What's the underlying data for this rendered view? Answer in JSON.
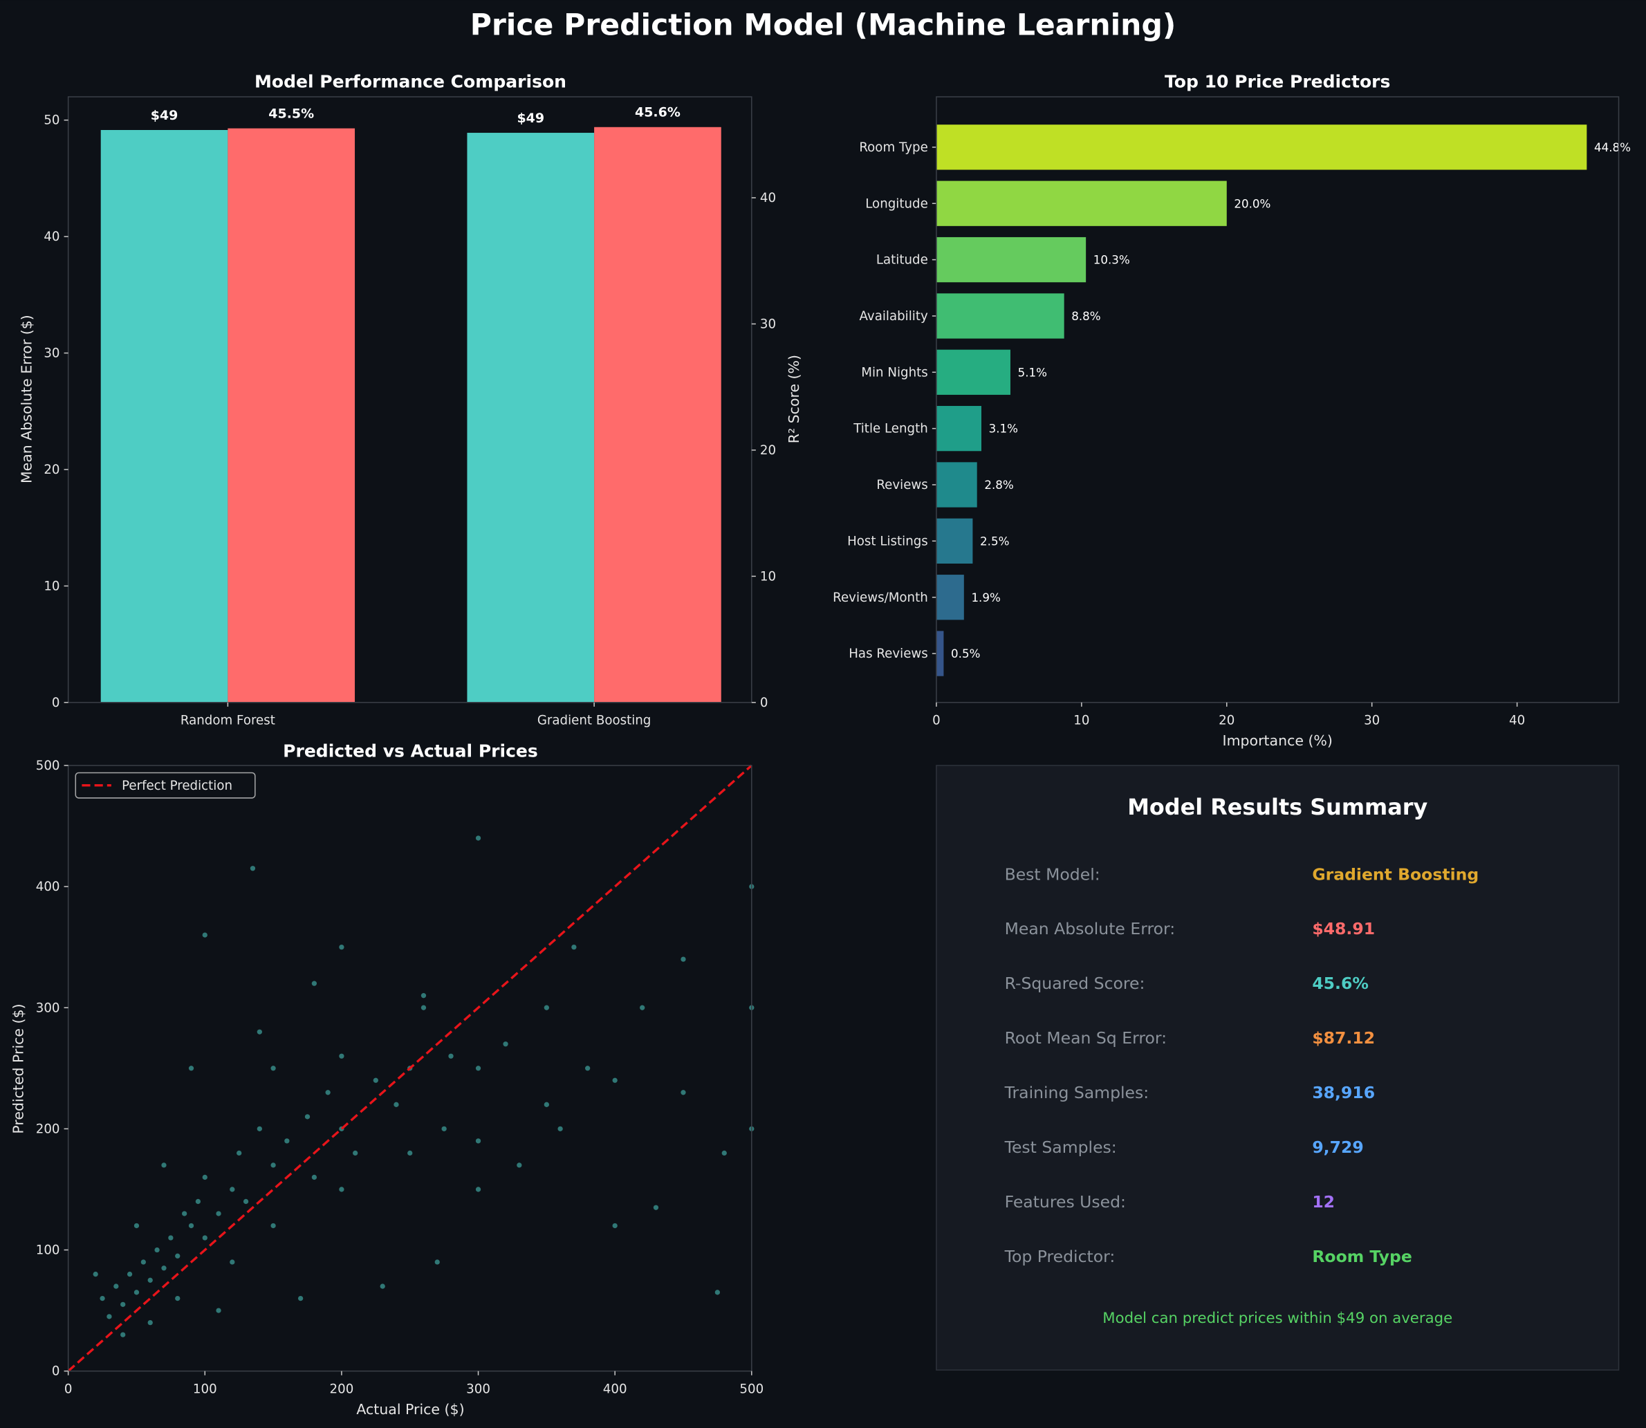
{
  "title": "Price Prediction Model (Machine Learning)",
  "chart_data": [
    {
      "type": "bar",
      "title": "Model Performance Comparison",
      "categories": [
        "Random Forest",
        "Gradient Boosting"
      ],
      "ylabel": "Mean Absolute Error ($)",
      "y2label": "R² Score (%)",
      "ylim": [
        0,
        52
      ],
      "y2lim": [
        0,
        48
      ],
      "yticks": [
        0,
        10,
        20,
        30,
        40,
        50
      ],
      "y2ticks": [
        0,
        10,
        20,
        30,
        40
      ],
      "series": [
        {
          "axis": "left",
          "values": [
            49.15,
            48.91
          ],
          "labels": [
            "$49",
            "$49"
          ],
          "color": "#4ecdc4"
        },
        {
          "axis": "right",
          "values": [
            45.5,
            45.6
          ],
          "labels": [
            "45.5%",
            "45.6%"
          ],
          "color": "#ff6b6b"
        }
      ]
    },
    {
      "type": "bar",
      "orientation": "horizontal",
      "title": "Top 10 Price Predictors",
      "xlabel": "Importance (%)",
      "xlim": [
        0,
        47
      ],
      "xticks": [
        0,
        10,
        20,
        30,
        40
      ],
      "categories": [
        "Room Type",
        "Longitude",
        "Latitude",
        "Availability",
        "Min Nights",
        "Title Length",
        "Reviews",
        "Host Listings",
        "Reviews/Month",
        "Has Reviews"
      ],
      "values": [
        44.8,
        20.0,
        10.3,
        8.8,
        5.1,
        3.1,
        2.8,
        2.5,
        1.9,
        0.5
      ],
      "labels": [
        "44.8%",
        "20.0%",
        "10.3%",
        "8.8%",
        "5.1%",
        "3.1%",
        "2.8%",
        "2.5%",
        "1.9%",
        "0.5%"
      ],
      "colors": [
        "#bfe025",
        "#90d743",
        "#65cb5e",
        "#40bd72",
        "#26ad81",
        "#1f9e89",
        "#1f8a8c",
        "#26788e",
        "#2d6b8e",
        "#35558a"
      ]
    },
    {
      "type": "scatter",
      "title": "Predicted vs Actual Prices",
      "xlabel": "Actual Price ($)",
      "ylabel": "Predicted Price ($)",
      "xlim": [
        0,
        500
      ],
      "ylim": [
        0,
        500
      ],
      "xticks": [
        0,
        100,
        200,
        300,
        400,
        500
      ],
      "yticks": [
        0,
        100,
        200,
        300,
        400,
        500
      ],
      "legend": "top-left",
      "reference_line": {
        "name": "Perfect Prediction",
        "from": [
          0,
          0
        ],
        "to": [
          500,
          500
        ],
        "color": "#e8141a"
      },
      "point_color": "#4ecdc4",
      "points": [
        [
          25,
          60
        ],
        [
          30,
          45
        ],
        [
          35,
          70
        ],
        [
          40,
          55
        ],
        [
          45,
          80
        ],
        [
          50,
          65
        ],
        [
          55,
          90
        ],
        [
          60,
          75
        ],
        [
          65,
          100
        ],
        [
          70,
          85
        ],
        [
          75,
          110
        ],
        [
          80,
          95
        ],
        [
          85,
          130
        ],
        [
          90,
          120
        ],
        [
          95,
          140
        ],
        [
          100,
          110
        ],
        [
          100,
          160
        ],
        [
          110,
          130
        ],
        [
          120,
          150
        ],
        [
          125,
          180
        ],
        [
          130,
          140
        ],
        [
          140,
          200
        ],
        [
          150,
          170
        ],
        [
          150,
          120
        ],
        [
          150,
          250
        ],
        [
          160,
          190
        ],
        [
          175,
          210
        ],
        [
          180,
          160
        ],
        [
          190,
          230
        ],
        [
          200,
          200
        ],
        [
          200,
          150
        ],
        [
          200,
          260
        ],
        [
          210,
          180
        ],
        [
          225,
          240
        ],
        [
          240,
          220
        ],
        [
          250,
          250
        ],
        [
          250,
          180
        ],
        [
          260,
          300
        ],
        [
          275,
          200
        ],
        [
          280,
          260
        ],
        [
          300,
          190
        ],
        [
          300,
          250
        ],
        [
          300,
          150
        ],
        [
          300,
          440
        ],
        [
          320,
          270
        ],
        [
          350,
          220
        ],
        [
          350,
          300
        ],
        [
          360,
          200
        ],
        [
          380,
          250
        ],
        [
          400,
          240
        ],
        [
          400,
          120
        ],
        [
          420,
          300
        ],
        [
          450,
          230
        ],
        [
          450,
          340
        ],
        [
          475,
          65
        ],
        [
          500,
          300
        ],
        [
          500,
          200
        ],
        [
          500,
          400
        ],
        [
          40,
          30
        ],
        [
          60,
          40
        ],
        [
          80,
          60
        ],
        [
          90,
          250
        ],
        [
          120,
          90
        ],
        [
          135,
          415
        ],
        [
          170,
          60
        ],
        [
          230,
          70
        ],
        [
          100,
          360
        ],
        [
          110,
          50
        ],
        [
          50,
          120
        ],
        [
          70,
          170
        ],
        [
          270,
          90
        ],
        [
          330,
          170
        ],
        [
          370,
          350
        ],
        [
          430,
          135
        ],
        [
          480,
          180
        ],
        [
          20,
          80
        ],
        [
          140,
          280
        ],
        [
          180,
          320
        ],
        [
          200,
          350
        ],
        [
          260,
          310
        ]
      ]
    }
  ],
  "summary": {
    "title": "Model Results Summary",
    "rows": [
      {
        "label": "Best Model:",
        "value": "Gradient Boosting",
        "color": "#e0a82e"
      },
      {
        "label": "Mean Absolute Error:",
        "value": "$48.91",
        "color": "#ff6b6b"
      },
      {
        "label": "R-Squared Score:",
        "value": "45.6%",
        "color": "#4ecdc4"
      },
      {
        "label": "Root Mean Sq Error:",
        "value": "$87.12",
        "color": "#f39040"
      },
      {
        "label": "Training Samples:",
        "value": "38,916",
        "color": "#58a6ff"
      },
      {
        "label": "Test Samples:",
        "value": "9,729",
        "color": "#58a6ff"
      },
      {
        "label": "Features Used:",
        "value": "12",
        "color": "#a371f7"
      },
      {
        "label": "Top Predictor:",
        "value": "Room Type",
        "color": "#56d364"
      }
    ],
    "footer": "Model can predict prices within $49 on average",
    "footer_color": "#56d364"
  }
}
